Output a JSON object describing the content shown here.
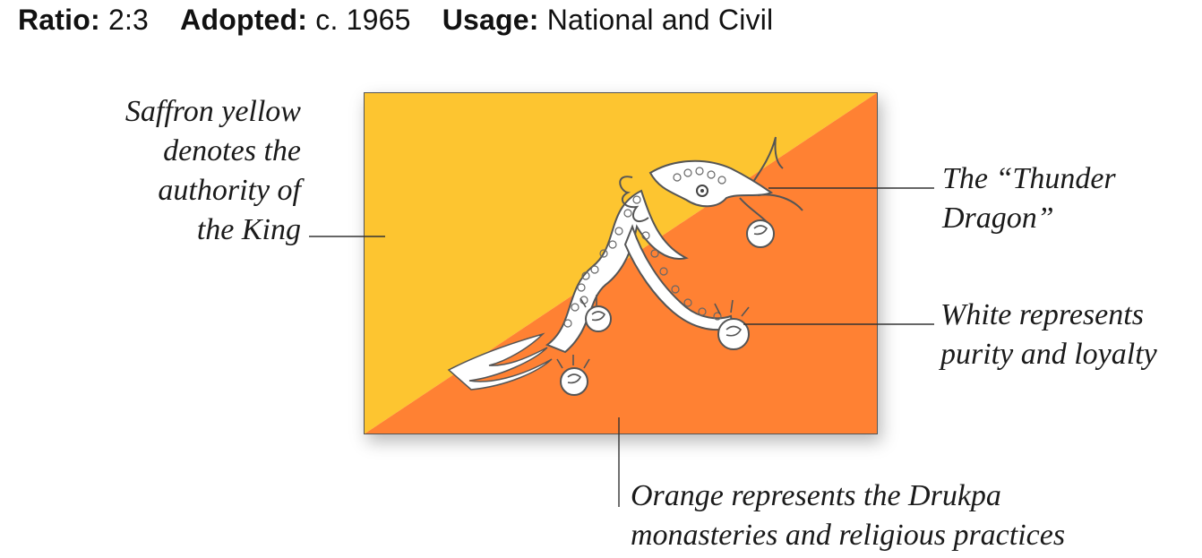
{
  "header": {
    "ratio_label": "Ratio:",
    "ratio_value": "2:3",
    "adopted_label": "Adopted:",
    "adopted_value": "c. 1965",
    "usage_label": "Usage:",
    "usage_value": "National and Civil"
  },
  "flag": {
    "colors": {
      "saffron": "#FDC530",
      "orange": "#FF8133",
      "white": "#FFFFFF",
      "outline": "#555555"
    },
    "emblem": "thunder-dragon"
  },
  "annotations": {
    "saffron": [
      "Saffron yellow",
      "denotes the",
      "authority of",
      "the King"
    ],
    "dragon": [
      "The “Thunder",
      "Dragon”"
    ],
    "white": [
      "White represents",
      "purity and loyalty"
    ],
    "orange": [
      "Orange represents the Drukpa",
      "monasteries and religious practices"
    ]
  }
}
